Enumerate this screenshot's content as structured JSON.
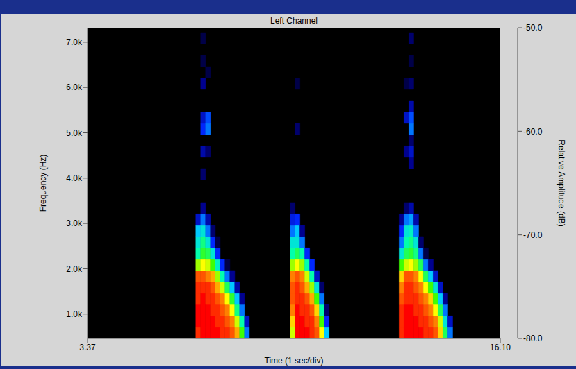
{
  "chart_data": {
    "type": "heatmap",
    "title": "Left Channel",
    "x_label": "Time (1 sec/div)",
    "y_label": "Frequency (Hz)",
    "xlim": [
      3.37,
      16.1
    ],
    "xticks": [
      3.37,
      {
        "value": 16.1,
        "label": "16.10"
      }
    ],
    "ylim": [
      460,
      7320
    ],
    "yticks": [
      {
        "value": 1000,
        "label": "1.0k"
      },
      {
        "value": 2000,
        "label": "2.0k"
      },
      {
        "value": 3000,
        "label": "3.0k"
      },
      {
        "value": 4000,
        "label": "4.0k"
      },
      {
        "value": 5000,
        "label": "5.0k"
      },
      {
        "value": 6000,
        "label": "6.0k"
      },
      {
        "value": 7000,
        "label": "7.0k"
      }
    ],
    "y_edges": [
      460,
      710,
      960,
      1210,
      1460,
      1710,
      1960,
      2210,
      2460,
      2710,
      2960,
      3210,
      3460,
      3710,
      3960,
      4210,
      4460,
      4710,
      4960,
      5210,
      5460,
      5710,
      5960,
      6210,
      6460,
      6710,
      6960,
      7210
    ],
    "cells": [
      {
        "x_edges": [
          6.71,
          6.86,
          7.01,
          7.16,
          7.31,
          7.46,
          7.61,
          7.76,
          7.91,
          8.06,
          8.21,
          8.36
        ],
        "z": [
          [
            -51,
            -50,
            -50,
            -51,
            -51,
            -52,
            -58,
            -64,
            -66,
            -68,
            -74
          ],
          [
            -50,
            -50,
            -50,
            -50,
            -51,
            -52,
            -56,
            -61,
            -63,
            -66,
            -70,
            -76,
            null,
            null,
            -77,
            null,
            -75,
            null,
            -72,
            -74,
            null,
            null,
            -76,
            null,
            -78,
            null,
            -78
          ],
          [
            -50,
            -50,
            -50,
            -51,
            -51,
            -53,
            -57,
            -62,
            -66,
            -70,
            -75,
            null,
            null,
            null,
            null,
            null,
            -77,
            null,
            -70,
            -71,
            null,
            null,
            null,
            -78
          ],
          [
            -50,
            -50,
            -51,
            -51,
            -52,
            -54,
            -60,
            -66,
            -72,
            -77
          ],
          [
            -50,
            -51,
            -51,
            -52,
            -54,
            -58,
            -65,
            -72,
            -78
          ],
          [
            -51,
            -51,
            -52,
            -53,
            -57,
            -64,
            -72
          ],
          [
            -51,
            -52,
            -53,
            -56,
            -62,
            -70,
            -78
          ],
          [
            -52,
            -53,
            -56,
            -61,
            -68,
            -76
          ],
          [
            -54,
            -57,
            -63,
            -68,
            -75
          ],
          [
            -60,
            -64,
            -70,
            -76
          ],
          [
            -70,
            -74
          ]
        ]
      },
      {
        "x_edges": [
          9.62,
          9.77,
          9.92,
          10.07,
          10.22,
          10.37,
          10.52,
          10.67,
          10.82
        ],
        "z": [
          [
            -57,
            -55,
            -53,
            -52,
            -52,
            -53,
            -58,
            -64,
            -66,
            -70,
            -73,
            -77
          ],
          [
            -50,
            -50,
            -50,
            -51,
            -51,
            -52,
            -56,
            -62,
            -66,
            -68,
            -72,
            null,
            null,
            null,
            null,
            null,
            null,
            null,
            -77,
            null,
            null,
            null,
            -78
          ],
          [
            -50,
            -50,
            -51,
            -51,
            -52,
            -53,
            -58,
            -64,
            -70,
            -76
          ],
          [
            -50,
            -51,
            -51,
            -52,
            -54,
            -57,
            -64,
            -72
          ],
          [
            -51,
            -51,
            -52,
            -54,
            -58,
            -64,
            -72
          ],
          [
            -52,
            -53,
            -55,
            -60,
            -66,
            -74
          ],
          [
            -56,
            -60,
            -64,
            -70,
            -77
          ],
          [
            -68,
            -72,
            -77
          ]
        ]
      },
      {
        "x_edges": [
          12.98,
          13.13,
          13.28,
          13.43,
          13.58,
          13.73,
          13.88,
          14.03,
          14.18,
          14.33,
          14.48,
          14.63
        ],
        "z": [
          [
            -51,
            -51,
            -51,
            -52,
            -53,
            -55,
            -60,
            -66,
            -70,
            -72,
            -76
          ],
          [
            -50,
            -50,
            -50,
            -51,
            -51,
            -52,
            -57,
            -62,
            -64,
            -66,
            -70,
            -77,
            null,
            null,
            null,
            null,
            -76,
            null,
            null,
            -74,
            null,
            null,
            -78
          ],
          [
            -50,
            -50,
            -50,
            -51,
            -51,
            -52,
            -56,
            -61,
            -63,
            -65,
            -69,
            -75,
            null,
            null,
            null,
            -76,
            -74,
            -77,
            -70,
            -71,
            -75,
            null,
            -77,
            null,
            -78,
            null,
            -77
          ],
          [
            -50,
            -50,
            -51,
            -51,
            -52,
            -53,
            -58,
            -63,
            -66,
            -70,
            -75
          ],
          [
            -50,
            -51,
            -51,
            -52,
            -53,
            -56,
            -62,
            -70,
            -77
          ],
          [
            -51,
            -51,
            -52,
            -53,
            -56,
            -62,
            -70,
            -78
          ],
          [
            -51,
            -52,
            -53,
            -55,
            -60,
            -68,
            -76
          ],
          [
            -52,
            -53,
            -56,
            -60,
            -66,
            -74
          ],
          [
            -55,
            -57,
            -62,
            -68,
            -74
          ],
          [
            -62,
            -66,
            -70,
            -76
          ],
          [
            -70,
            -74
          ]
        ]
      }
    ],
    "colorbar": {
      "label": "Relative Amplitude (dB)",
      "range": [
        -80,
        -50
      ],
      "ticks": [
        {
          "value": -50,
          "label": "-50.0"
        },
        {
          "value": -60,
          "label": "-60.0"
        },
        {
          "value": -70,
          "label": "-70.0"
        },
        {
          "value": -80,
          "label": "-80.0"
        }
      ]
    }
  }
}
